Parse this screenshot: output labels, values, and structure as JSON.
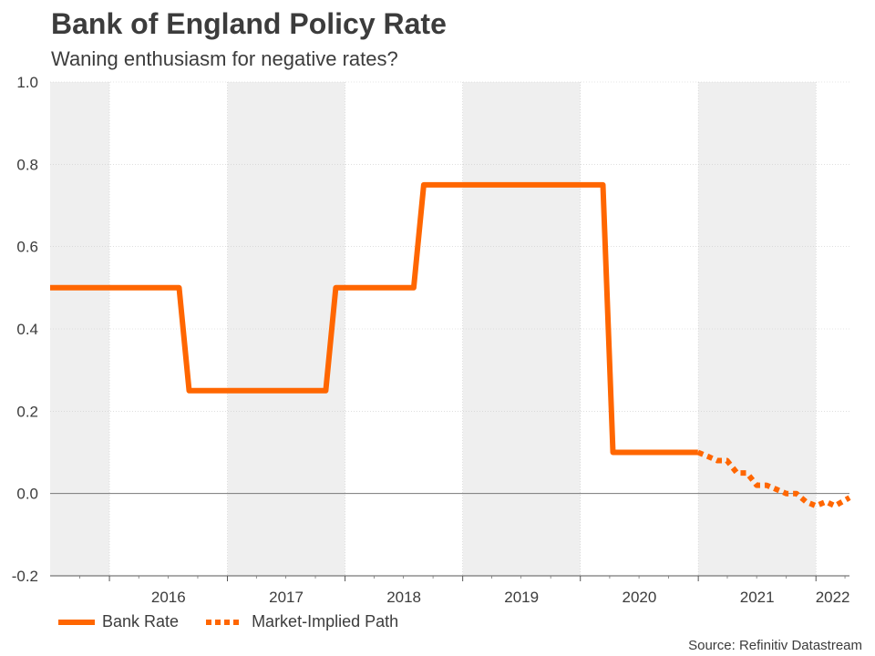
{
  "chart_data": {
    "type": "line",
    "title": "Bank of England Policy Rate",
    "subtitle": "Waning enthusiasm for negative rates?",
    "source": "Source: Refinitiv Datastream",
    "ylim": [
      -0.2,
      1.0
    ],
    "yticks": [
      "1.0",
      "0.8",
      "0.6",
      "0.4",
      "0.2",
      "0.0",
      "-0.2"
    ],
    "ytick_values": [
      1.0,
      0.8,
      0.6,
      0.4,
      0.2,
      0.0,
      -0.2
    ],
    "xlim": [
      "2015-07-01",
      "2022-04-15"
    ],
    "year_labels": [
      "2016",
      "2017",
      "2018",
      "2019",
      "2020",
      "2021",
      "2022"
    ],
    "grid": true,
    "legend_position": "bottom-left",
    "colors": {
      "line": "#ff6600",
      "band": "#efefef",
      "zero": "#777777",
      "grid": "#cccccc"
    },
    "series": [
      {
        "name": "Bank Rate",
        "style": "solid",
        "points": [
          [
            "2015-07-01",
            0.5
          ],
          [
            "2016-08-04",
            0.5
          ],
          [
            "2016-08-04",
            0.25
          ],
          [
            "2017-11-02",
            0.25
          ],
          [
            "2017-11-02",
            0.5
          ],
          [
            "2018-08-02",
            0.5
          ],
          [
            "2018-08-02",
            0.75
          ],
          [
            "2020-03-11",
            0.75
          ],
          [
            "2020-03-11",
            0.1
          ],
          [
            "2020-12-31",
            0.1
          ]
        ]
      },
      {
        "name": "Market-Implied Path",
        "style": "dotted",
        "points": [
          [
            "2020-12-31",
            0.1
          ],
          [
            "2021-01-31",
            0.09
          ],
          [
            "2021-03-01",
            0.08
          ],
          [
            "2021-03-31",
            0.08
          ],
          [
            "2021-05-01",
            0.05
          ],
          [
            "2021-06-01",
            0.05
          ],
          [
            "2021-07-01",
            0.02
          ],
          [
            "2021-08-01",
            0.02
          ],
          [
            "2021-09-01",
            0.01
          ],
          [
            "2021-10-01",
            0.0
          ],
          [
            "2021-11-01",
            0.0
          ],
          [
            "2021-12-01",
            -0.02
          ],
          [
            "2022-01-01",
            -0.03
          ],
          [
            "2022-02-01",
            -0.02
          ],
          [
            "2022-03-01",
            -0.03
          ],
          [
            "2022-04-15",
            -0.01
          ]
        ]
      }
    ]
  }
}
